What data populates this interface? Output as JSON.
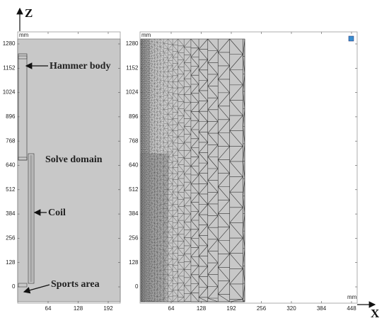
{
  "axis_labels": {
    "z": "Z",
    "x": "X"
  },
  "annotations": {
    "hammer_body": "Hammer body",
    "solve_domain": "Solve domain",
    "coil": "Coil",
    "sports_area": "Sports area"
  },
  "left_panel": {
    "unit": "mm",
    "yticks": [
      1280,
      1152,
      1024,
      896,
      768,
      640,
      512,
      384,
      256,
      128,
      0
    ],
    "xticks": [
      64,
      128,
      192
    ]
  },
  "right_panel": {
    "unit_top": "mm",
    "unit_bottom": "mm",
    "yticks": [
      1280,
      1152,
      1024,
      896,
      768,
      640,
      512,
      384,
      256,
      128,
      0
    ],
    "xticks": [
      64,
      128,
      192,
      256,
      320,
      384,
      448
    ]
  }
}
